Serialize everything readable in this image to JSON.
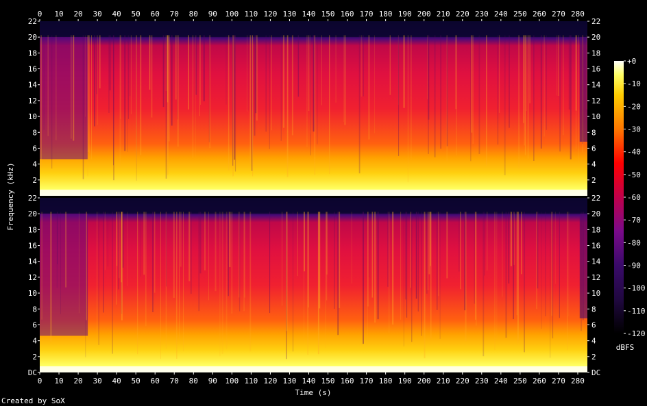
{
  "chart_data": {
    "type": "heatmap",
    "title": "",
    "xlabel": "Time (s)",
    "ylabel": "Frequency (kHz)",
    "xlim": [
      0,
      285
    ],
    "ylim": [
      0,
      22
    ],
    "x_ticks": [
      "0",
      "10",
      "20",
      "30",
      "40",
      "50",
      "60",
      "70",
      "80",
      "90",
      "100",
      "110",
      "120",
      "130",
      "140",
      "150",
      "160",
      "170",
      "180",
      "190",
      "200",
      "210",
      "220",
      "230",
      "240",
      "250",
      "260",
      "270",
      "280"
    ],
    "channels": [
      {
        "name": "",
        "y_ticks": [
          "22",
          "20",
          "18",
          "16",
          "14",
          "12",
          "10",
          "8",
          "6",
          "4",
          "2"
        ]
      },
      {
        "name": "",
        "y_ticks": [
          "22",
          "20",
          "18",
          "16",
          "14",
          "12",
          "10",
          "8",
          "6",
          "4",
          "2",
          "DC"
        ]
      }
    ],
    "colorbar": {
      "label": "dBFS",
      "range": [
        -120,
        0
      ],
      "ticks": [
        "+0",
        "-10",
        "-20",
        "-30",
        "-40",
        "-50",
        "-60",
        "-70",
        "-80",
        "-90",
        "-100",
        "-110",
        "-120"
      ],
      "colors": [
        "#ffffff",
        "#ffff66",
        "#ffcc00",
        "#ff7700",
        "#ff0000",
        "#c0004a",
        "#7a0a8a",
        "#3a0a6a",
        "#000000"
      ]
    },
    "footer": "Created by SoX"
  }
}
